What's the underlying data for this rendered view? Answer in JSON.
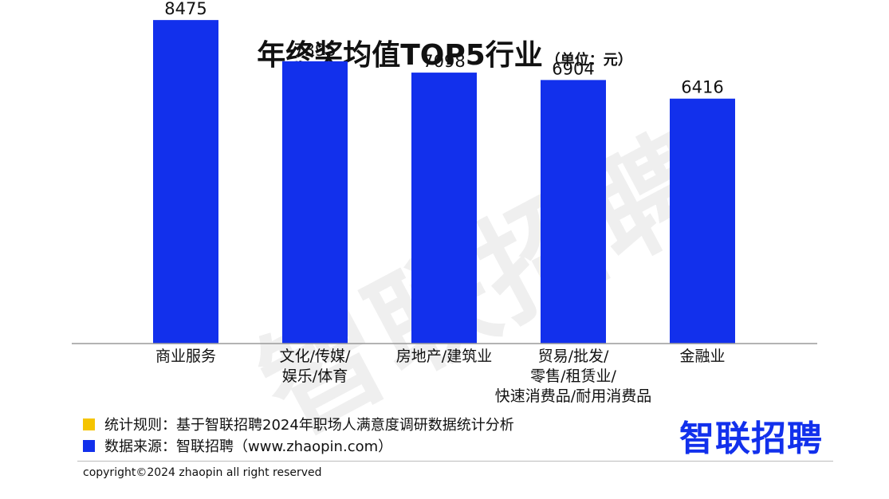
{
  "title": "年终奖均值TOP5行业",
  "unit_note": "（单位：元）",
  "watermark": "智联招聘",
  "chart_data": {
    "type": "bar",
    "title": "年终奖均值TOP5行业",
    "categories": [
      [
        "商业服务"
      ],
      [
        "文化/传媒/",
        "娱乐/体育"
      ],
      [
        "房地产/建筑业"
      ],
      [
        "贸易/批发/",
        "零售/租赁业/",
        "快速消费品/耐用消费品"
      ],
      [
        "金融业"
      ]
    ],
    "values": [
      8475,
      7395,
      7098,
      6904,
      6416
    ],
    "ylim": [
      0,
      9000
    ],
    "bar_color": "#1230ec",
    "grid": false,
    "legend": "none"
  },
  "notes": {
    "rule": {
      "text": "统计规则：基于智联招聘2024年职场人满意度调研数据统计分析",
      "color": "#f5c400"
    },
    "source": {
      "text": "数据来源：智联招聘（www.zhaopin.com）",
      "color": "#1230ec"
    }
  },
  "brand": "智联招聘",
  "copyright": "copyright©2024 zhaopin all right reserved"
}
